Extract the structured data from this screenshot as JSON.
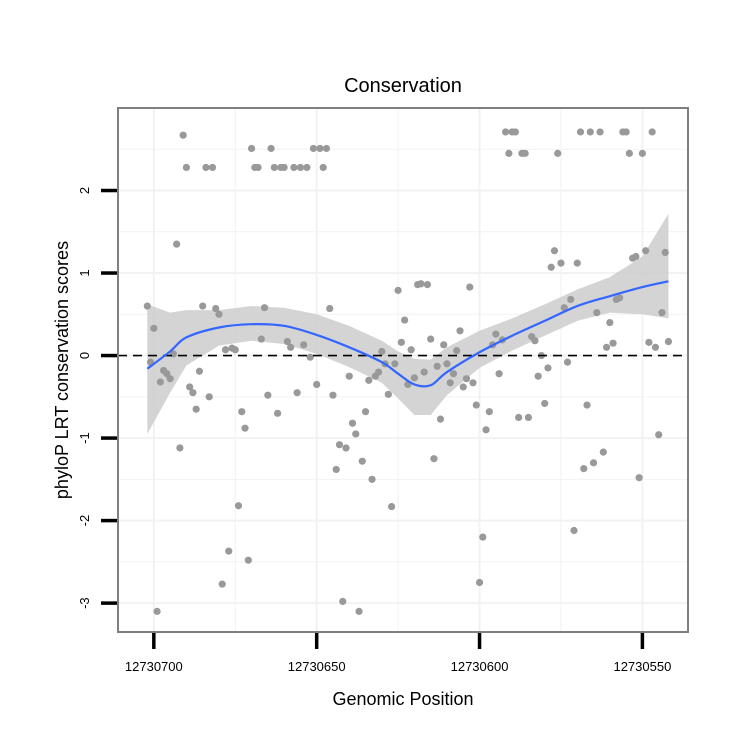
{
  "chart_data": {
    "type": "scatter",
    "title": "Conservation",
    "xlabel": "Genomic Position",
    "ylabel": "phyloP LRT conservation scores",
    "x_reversed": true,
    "xlim": [
      12730711,
      12730536
    ],
    "ylim": [
      -3.35,
      3.0
    ],
    "x_ticks": [
      12730700,
      12730650,
      12730600,
      12730550
    ],
    "x_tick_labels": [
      "12730700",
      "12730650",
      "12730600",
      "12730550"
    ],
    "y_ticks": [
      -3,
      -2,
      -1,
      0,
      1,
      2
    ],
    "y_tick_labels": [
      "-3",
      "-2",
      "-1",
      "0",
      "1",
      "2"
    ],
    "grid": true,
    "reference_line": {
      "y": 0,
      "style": "dashed"
    },
    "colors": {
      "points": "#999999",
      "smooth_line": "#3366ff",
      "ribbon": "#cccccc",
      "frame": "#7f7f7f",
      "grid": "#f2f2f2"
    },
    "points": [
      [
        12730702,
        0.6
      ],
      [
        12730701,
        -0.08
      ],
      [
        12730700,
        0.33
      ],
      [
        12730699,
        -3.1
      ],
      [
        12730698,
        -0.32
      ],
      [
        12730697,
        -0.18
      ],
      [
        12730696,
        -0.22
      ],
      [
        12730695,
        -0.28
      ],
      [
        12730694,
        0.02
      ],
      [
        12730693,
        1.35
      ],
      [
        12730692,
        -1.12
      ],
      [
        12730691,
        2.67
      ],
      [
        12730690,
        2.28
      ],
      [
        12730689,
        -0.38
      ],
      [
        12730688,
        -0.45
      ],
      [
        12730687,
        -0.65
      ],
      [
        12730686,
        -0.19
      ],
      [
        12730685,
        0.6
      ],
      [
        12730684,
        2.28
      ],
      [
        12730683,
        -0.5
      ],
      [
        12730682,
        2.28
      ],
      [
        12730681,
        0.57
      ],
      [
        12730680,
        0.5
      ],
      [
        12730679,
        -2.77
      ],
      [
        12730678,
        0.07
      ],
      [
        12730677,
        -2.37
      ],
      [
        12730676,
        0.09
      ],
      [
        12730675,
        0.07
      ],
      [
        12730674,
        -1.82
      ],
      [
        12730673,
        -0.68
      ],
      [
        12730672,
        -0.88
      ],
      [
        12730671,
        -2.48
      ],
      [
        12730670,
        2.51
      ],
      [
        12730669,
        2.28
      ],
      [
        12730668,
        2.28
      ],
      [
        12730667,
        0.2
      ],
      [
        12730666,
        0.58
      ],
      [
        12730665,
        -0.48
      ],
      [
        12730664,
        2.51
      ],
      [
        12730663,
        2.28
      ],
      [
        12730662,
        -0.7
      ],
      [
        12730661,
        2.28
      ],
      [
        12730660,
        2.28
      ],
      [
        12730659,
        0.17
      ],
      [
        12730658,
        0.1
      ],
      [
        12730657,
        2.28
      ],
      [
        12730656,
        -0.45
      ],
      [
        12730655,
        2.28
      ],
      [
        12730654,
        0.13
      ],
      [
        12730653,
        2.28
      ],
      [
        12730652,
        -0.02
      ],
      [
        12730651,
        2.51
      ],
      [
        12730650,
        -0.35
      ],
      [
        12730649,
        2.51
      ],
      [
        12730648,
        2.28
      ],
      [
        12730647,
        2.51
      ],
      [
        12730646,
        0.57
      ],
      [
        12730645,
        -0.48
      ],
      [
        12730644,
        -1.38
      ],
      [
        12730643,
        -1.08
      ],
      [
        12730642,
        -2.98
      ],
      [
        12730641,
        -1.12
      ],
      [
        12730640,
        -0.25
      ],
      [
        12730639,
        -0.82
      ],
      [
        12730638,
        -0.95
      ],
      [
        12730637,
        -3.1
      ],
      [
        12730636,
        -1.28
      ],
      [
        12730635,
        -0.68
      ],
      [
        12730634,
        -0.3
      ],
      [
        12730633,
        -1.5
      ],
      [
        12730632,
        -0.25
      ],
      [
        12730631,
        -0.2
      ],
      [
        12730630,
        0.05
      ],
      [
        12730629,
        -0.1
      ],
      [
        12730628,
        -0.47
      ],
      [
        12730627,
        -1.83
      ],
      [
        12730626,
        -0.1
      ],
      [
        12730625,
        0.79
      ],
      [
        12730624,
        0.16
      ],
      [
        12730623,
        0.43
      ],
      [
        12730622,
        -0.35
      ],
      [
        12730621,
        0.07
      ],
      [
        12730620,
        -0.27
      ],
      [
        12730619,
        0.86
      ],
      [
        12730618,
        0.87
      ],
      [
        12730617,
        -0.2
      ],
      [
        12730616,
        0.86
      ],
      [
        12730615,
        0.2
      ],
      [
        12730614,
        -1.25
      ],
      [
        12730613,
        -0.13
      ],
      [
        12730612,
        -0.77
      ],
      [
        12730611,
        0.13
      ],
      [
        12730610,
        -0.1
      ],
      [
        12730609,
        -0.33
      ],
      [
        12730608,
        -0.22
      ],
      [
        12730607,
        0.06
      ],
      [
        12730606,
        0.3
      ],
      [
        12730605,
        -0.38
      ],
      [
        12730604,
        -0.28
      ],
      [
        12730603,
        0.83
      ],
      [
        12730602,
        -0.33
      ],
      [
        12730601,
        -0.6
      ],
      [
        12730600,
        -2.75
      ],
      [
        12730599,
        -2.2
      ],
      [
        12730598,
        -0.9
      ],
      [
        12730597,
        -0.68
      ],
      [
        12730596,
        0.13
      ],
      [
        12730595,
        0.26
      ],
      [
        12730594,
        -0.22
      ],
      [
        12730593,
        0.19
      ],
      [
        12730592,
        2.71
      ],
      [
        12730591,
        2.45
      ],
      [
        12730590,
        2.71
      ],
      [
        12730589,
        2.71
      ],
      [
        12730588,
        -0.75
      ],
      [
        12730587,
        2.45
      ],
      [
        12730586,
        2.45
      ],
      [
        12730585,
        -0.75
      ],
      [
        12730584,
        0.23
      ],
      [
        12730583,
        0.18
      ],
      [
        12730582,
        -0.25
      ],
      [
        12730581,
        0.0
      ],
      [
        12730580,
        -0.58
      ],
      [
        12730579,
        -0.15
      ],
      [
        12730578,
        1.07
      ],
      [
        12730577,
        1.27
      ],
      [
        12730576,
        2.45
      ],
      [
        12730575,
        1.12
      ],
      [
        12730574,
        0.58
      ],
      [
        12730573,
        -0.08
      ],
      [
        12730572,
        0.68
      ],
      [
        12730571,
        -2.12
      ],
      [
        12730570,
        1.12
      ],
      [
        12730569,
        2.71
      ],
      [
        12730568,
        -1.37
      ],
      [
        12730567,
        -0.6
      ],
      [
        12730566,
        2.71
      ],
      [
        12730565,
        -1.3
      ],
      [
        12730564,
        0.52
      ],
      [
        12730563,
        2.71
      ],
      [
        12730562,
        -1.17
      ],
      [
        12730561,
        0.1
      ],
      [
        12730560,
        0.4
      ],
      [
        12730559,
        0.15
      ],
      [
        12730558,
        0.68
      ],
      [
        12730557,
        0.7
      ],
      [
        12730556,
        2.71
      ],
      [
        12730555,
        2.71
      ],
      [
        12730554,
        2.45
      ],
      [
        12730553,
        1.18
      ],
      [
        12730552,
        1.2
      ],
      [
        12730551,
        -1.48
      ],
      [
        12730550,
        2.45
      ],
      [
        12730549,
        1.27
      ],
      [
        12730548,
        0.16
      ],
      [
        12730547,
        2.71
      ],
      [
        12730546,
        0.1
      ],
      [
        12730545,
        -0.96
      ],
      [
        12730544,
        0.52
      ],
      [
        12730543,
        1.25
      ],
      [
        12730542,
        0.17
      ]
    ],
    "smooth_x": [
      12730702,
      12730695,
      12730690,
      12730680,
      12730670,
      12730660,
      12730650,
      12730640,
      12730630,
      12730625,
      12730620,
      12730615,
      12730610,
      12730600,
      12730590,
      12730580,
      12730570,
      12730560,
      12730550,
      12730542
    ],
    "smooth_y": [
      -0.16,
      0.05,
      0.22,
      0.34,
      0.38,
      0.36,
      0.25,
      0.1,
      -0.08,
      -0.22,
      -0.35,
      -0.36,
      -0.2,
      0.04,
      0.24,
      0.42,
      0.6,
      0.72,
      0.83,
      0.9
    ],
    "ribbon_lower": [
      -0.95,
      -0.45,
      -0.12,
      0.12,
      0.18,
      0.14,
      0.02,
      -0.14,
      -0.33,
      -0.52,
      -0.72,
      -0.72,
      -0.48,
      -0.15,
      0.06,
      0.24,
      0.42,
      0.52,
      0.5,
      0.45
    ],
    "ribbon_upper": [
      0.62,
      0.52,
      0.55,
      0.55,
      0.6,
      0.58,
      0.5,
      0.36,
      0.18,
      0.05,
      -0.04,
      -0.05,
      0.1,
      0.3,
      0.45,
      0.62,
      0.8,
      0.95,
      1.2,
      1.72
    ]
  }
}
